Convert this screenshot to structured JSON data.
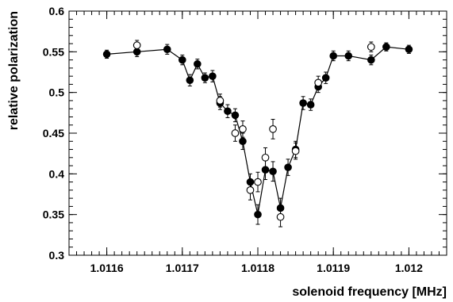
{
  "chart_data": {
    "type": "scatter",
    "title": "",
    "xlabel": "solenoid frequency [MHz]",
    "ylabel": "relative polarization",
    "xlim": [
      1.01155,
      1.01205
    ],
    "ylim": [
      0.3,
      0.6
    ],
    "grid": false,
    "x_ticks": [
      1.0116,
      1.0117,
      1.0118,
      1.0119,
      1.012
    ],
    "x_tick_labels": [
      "1.0116",
      "1.0117",
      "1.0118",
      "1.0119",
      "1.012"
    ],
    "y_ticks": [
      0.3,
      0.35,
      0.4,
      0.45,
      0.5,
      0.55,
      0.6
    ],
    "y_tick_labels": [
      "0.3",
      "0.35",
      "0.4",
      "0.45",
      "0.5",
      "0.55",
      "0.6"
    ],
    "series": [
      {
        "marker": "filled-circle",
        "connected": true,
        "color": "#000000",
        "x": [
          1.0116,
          1.01164,
          1.01168,
          1.0117,
          1.01171,
          1.01172,
          1.01173,
          1.01174,
          1.01175,
          1.01176,
          1.01177,
          1.01178,
          1.01179,
          1.0118,
          1.01181,
          1.01182,
          1.01183,
          1.01184,
          1.01185,
          1.01186,
          1.01187,
          1.01188,
          1.01189,
          1.0119,
          1.01192,
          1.01195,
          1.01197,
          1.012
        ],
        "y": [
          0.547,
          0.55,
          0.553,
          0.54,
          0.515,
          0.535,
          0.518,
          0.52,
          0.487,
          0.477,
          0.472,
          0.44,
          0.39,
          0.35,
          0.405,
          0.403,
          0.358,
          0.408,
          0.43,
          0.487,
          0.485,
          0.507,
          0.518,
          0.545,
          0.545,
          0.54,
          0.556,
          0.553
        ],
        "yerr": [
          0.005,
          0.006,
          0.006,
          0.006,
          0.007,
          0.006,
          0.006,
          0.007,
          0.008,
          0.008,
          0.008,
          0.01,
          0.01,
          0.012,
          0.012,
          0.012,
          0.012,
          0.01,
          0.01,
          0.008,
          0.007,
          0.007,
          0.007,
          0.006,
          0.006,
          0.006,
          0.005,
          0.005
        ]
      },
      {
        "marker": "open-circle",
        "connected": false,
        "color": "#000000",
        "x": [
          1.01164,
          1.01175,
          1.01177,
          1.01178,
          1.01179,
          1.0118,
          1.01181,
          1.01182,
          1.01183,
          1.01185,
          1.01188,
          1.01195
        ],
        "y": [
          0.558,
          0.49,
          0.45,
          0.455,
          0.38,
          0.39,
          0.42,
          0.455,
          0.347,
          0.428,
          0.512,
          0.556
        ],
        "yerr": [
          0.006,
          0.008,
          0.01,
          0.01,
          0.012,
          0.012,
          0.012,
          0.012,
          0.012,
          0.01,
          0.008,
          0.006
        ]
      }
    ]
  }
}
